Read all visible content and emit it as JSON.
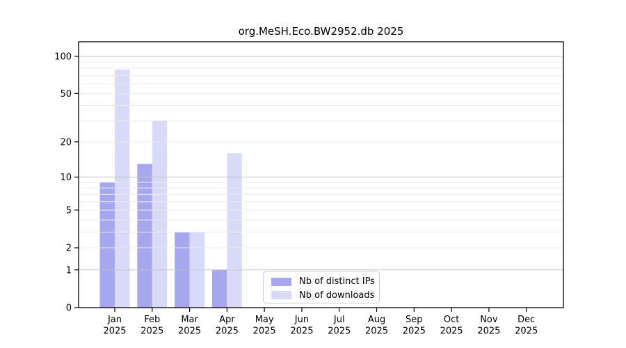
{
  "chart_data": {
    "type": "bar",
    "title": "org.MeSH.Eco.BW2952.db 2025",
    "categories": [
      "Jan",
      "Feb",
      "Mar",
      "Apr",
      "May",
      "Jun",
      "Jul",
      "Aug",
      "Sep",
      "Oct",
      "Nov",
      "Dec"
    ],
    "year_label": "2025",
    "series": [
      {
        "name": "Nb of distinct IPs",
        "color": "#a7a7ee",
        "values": [
          9,
          13,
          3,
          1,
          0,
          0,
          0,
          0,
          0,
          0,
          0,
          0
        ]
      },
      {
        "name": "Nb of downloads",
        "color": "#d9d9f8",
        "values": [
          78,
          30,
          3,
          16,
          0,
          0,
          0,
          0,
          0,
          0,
          0,
          0
        ]
      }
    ],
    "y_axis": {
      "scale": "log10(1+v)",
      "max_value": 131,
      "tick_values": [
        0,
        1,
        2,
        5,
        10,
        20,
        50,
        100
      ],
      "tick_labels": [
        "0",
        "1",
        "2",
        "5",
        "10",
        "20",
        "50",
        "100"
      ],
      "emphasized_gridlines": [
        1,
        10,
        100
      ],
      "minor_gridlines": [
        3,
        4,
        6,
        7,
        8,
        9,
        30,
        40,
        60,
        70,
        80,
        90
      ]
    },
    "legend": {
      "position": "lower-center"
    },
    "grid": true
  },
  "colors": {
    "background": "#ffffff",
    "axis": "#000000",
    "grid_emphasized": "#c6c6c6",
    "grid_minor": "#ececec",
    "tick_text": "#000000",
    "legend_border": "#c9c9c9"
  }
}
